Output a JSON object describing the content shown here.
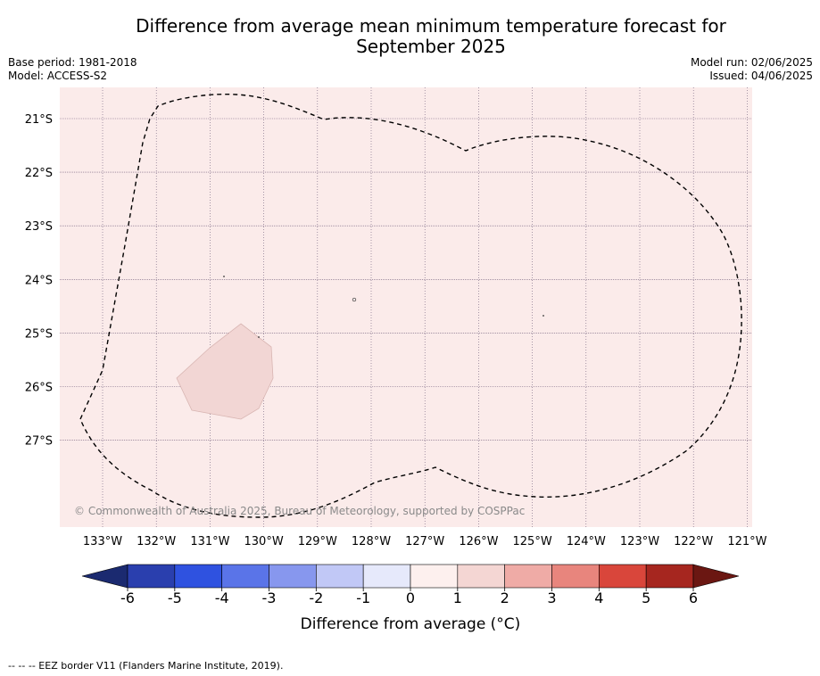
{
  "title_line1": "Difference from average mean minimum temperature forecast for",
  "title_line2": "September 2025",
  "base_period": "Base period: 1981-2018",
  "model": "Model: ACCESS-S2",
  "model_run": "Model run: 02/06/2025",
  "issued": "Issued: 04/06/2025",
  "copyright": "© Commonwealth of Australia 2025, Bureau of Meteorology, supported by COSPPac",
  "footer_note": "--  --  -- EEZ border V11 (Flanders Marine Institute, 2019).",
  "colorbar": {
    "label": "Difference from average (°C)",
    "ticks": [
      "-6",
      "-5",
      "-4",
      "-3",
      "-2",
      "-1",
      "0",
      "1",
      "2",
      "3",
      "4",
      "5",
      "6"
    ],
    "colors": [
      "#2a3fae",
      "#2f52e0",
      "#5a74e8",
      "#8797ee",
      "#c1c8f6",
      "#e6e9fb",
      "#fdf0ee",
      "#f4d6d3",
      "#efaba6",
      "#e8857d",
      "#d9463b",
      "#a6261f"
    ],
    "under_color": "#1b2a70",
    "over_color": "#6b1712"
  },
  "map": {
    "background_anomaly_color": "#fbebea",
    "patch_color": "#f2d6d4",
    "lon_labels": [
      "133°W",
      "132°W",
      "131°W",
      "130°W",
      "129°W",
      "128°W",
      "127°W",
      "126°W",
      "125°W",
      "124°W",
      "123°W",
      "122°W",
      "121°W"
    ],
    "lat_labels": [
      "21°S",
      "22°S",
      "23°S",
      "24°S",
      "25°S",
      "26°S",
      "27°S"
    ]
  }
}
